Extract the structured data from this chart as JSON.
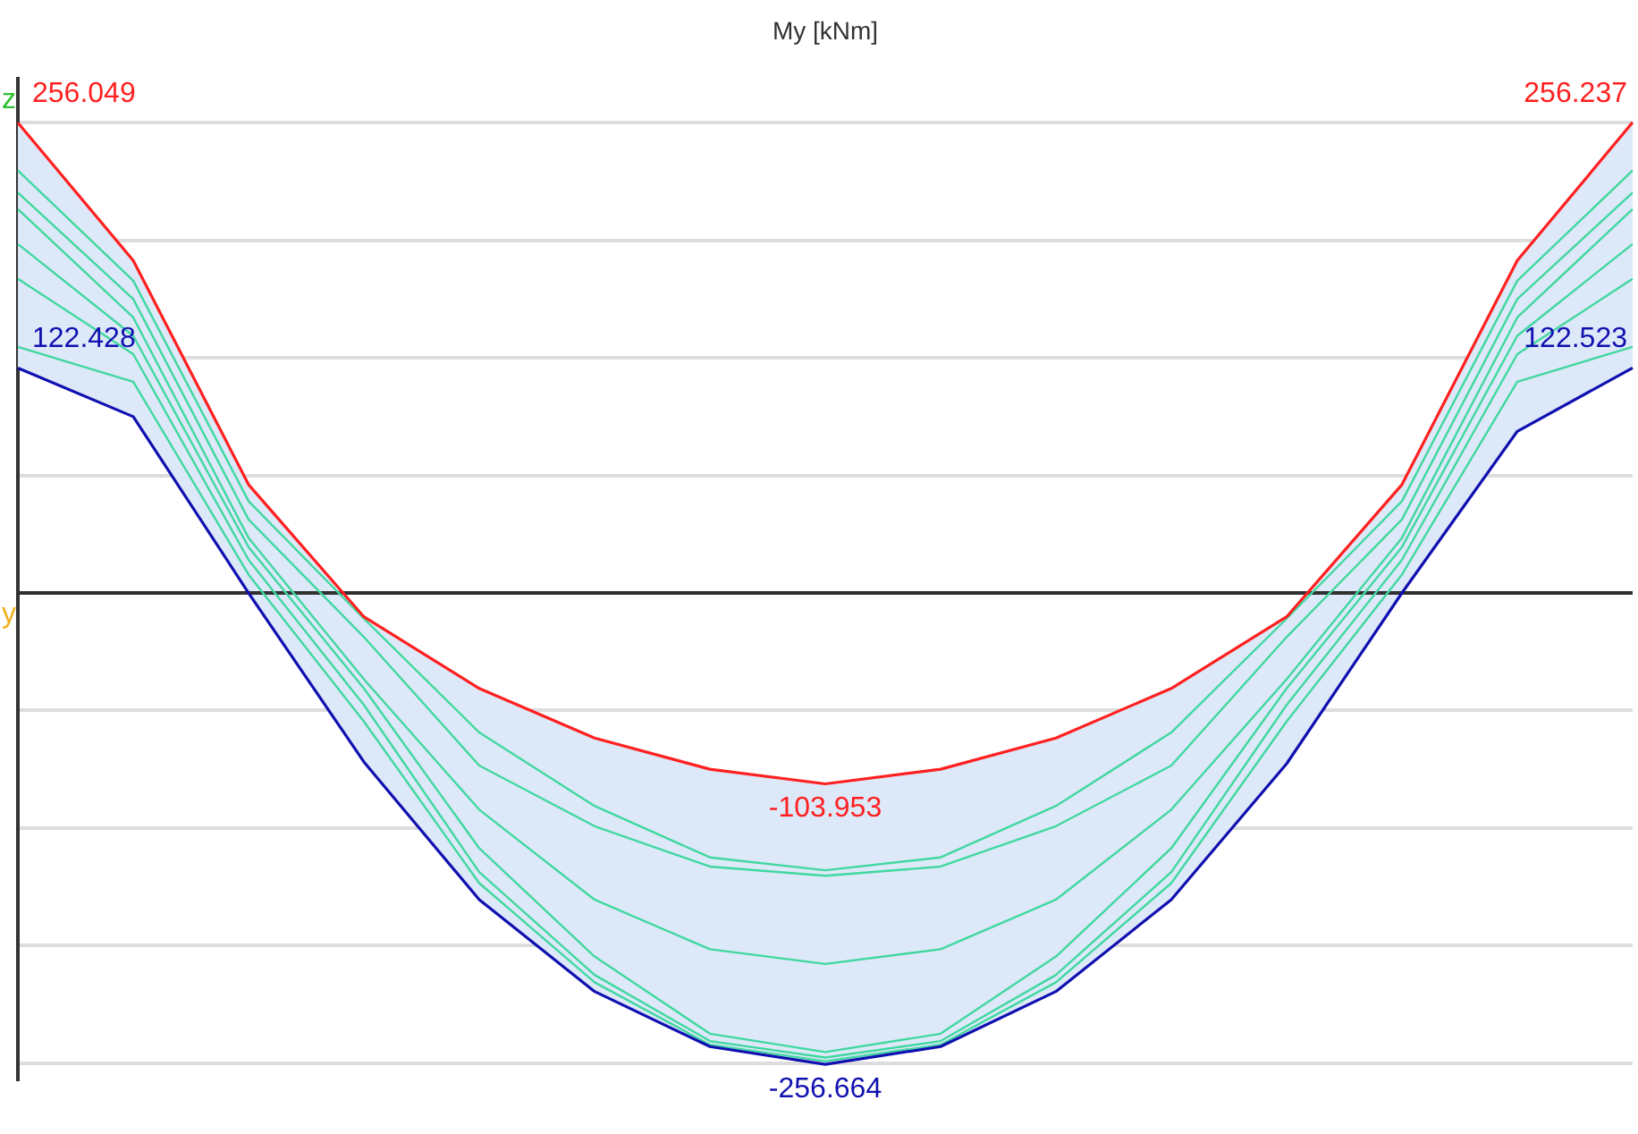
{
  "chart_data": {
    "type": "line",
    "title": "My [kNm]",
    "xlabel": "y",
    "ylabel": "z",
    "categories": [
      null,
      null,
      null,
      null,
      null,
      null,
      null,
      null,
      null,
      null,
      null,
      null,
      null,
      null,
      null
    ],
    "ylim": [
      -265,
      280
    ],
    "yticks": [
      {
        "value": -256,
        "label": null
      },
      {
        "value": -192,
        "label": null
      },
      {
        "value": -128,
        "label": null
      },
      {
        "value": -64,
        "label": null
      },
      {
        "value": 0,
        "label": null
      },
      {
        "value": 64,
        "label": null
      },
      {
        "value": 128,
        "label": null
      },
      {
        "value": 192,
        "label": null
      },
      {
        "value": 256,
        "label": null
      }
    ],
    "grid": "y",
    "marker": "none",
    "line_style": "solid",
    "series": [
      {
        "color": "#ff2020",
        "values": [
          256.049,
          181,
          59,
          -13,
          -52,
          -79,
          -96,
          -103.953,
          -96,
          -79,
          -52,
          -13,
          59,
          181,
          256.237
        ],
        "value_labels": [
          "256.049",
          null,
          null,
          null,
          null,
          null,
          null,
          "-103.953",
          null,
          null,
          null,
          null,
          null,
          null,
          "256.237"
        ],
        "upper": [
          256.049,
          181,
          59,
          -13,
          -52,
          -79,
          -96,
          -103.953,
          -96,
          -79,
          -52,
          -13,
          59,
          181,
          256.237
        ],
        "lower": [
          122.428,
          96,
          0,
          -92,
          -167,
          -217,
          -247,
          -256.664,
          -247,
          -217,
          -167,
          -93,
          0,
          88,
          122.523
        ]
      },
      {
        "color": "#1010b0",
        "values": [
          122.428,
          96,
          0,
          -92,
          -167,
          -217,
          -247,
          -256.664,
          -247,
          -217,
          -167,
          -93,
          0,
          88,
          122.523
        ],
        "value_labels": [
          "122.428",
          null,
          null,
          null,
          null,
          null,
          null,
          "-256.664",
          null,
          null,
          null,
          null,
          null,
          null,
          "122.523"
        ]
      },
      {
        "color": "#40d8a0",
        "values": [
          230,
          170,
          50,
          -14,
          -76,
          -116,
          -144,
          -151,
          -144,
          -116,
          -76,
          -14,
          50,
          170,
          230
        ]
      },
      {
        "color": "#40d8a0",
        "values": [
          218,
          160,
          40,
          -24,
          -94,
          -127,
          -149,
          -154,
          -149,
          -127,
          -94,
          -24,
          40,
          160,
          218
        ]
      },
      {
        "color": "#40d8a0",
        "values": [
          209,
          150,
          30,
          -47,
          -118,
          -167,
          -194,
          -202,
          -194,
          -167,
          -118,
          -47,
          30,
          150,
          209
        ]
      },
      {
        "color": "#40d8a0",
        "values": [
          190,
          140,
          25,
          -52,
          -139,
          -198,
          -240,
          -250,
          -240,
          -198,
          -139,
          -52,
          25,
          140,
          190
        ]
      },
      {
        "color": "#40d8a0",
        "values": [
          171,
          130,
          18,
          -61,
          -152,
          -208,
          -244,
          -253,
          -244,
          -208,
          -152,
          -61,
          18,
          130,
          171
        ]
      },
      {
        "color": "#40d8a0",
        "values": [
          134,
          115,
          10,
          -70,
          -158,
          -212,
          -246,
          -255,
          -246,
          -212,
          -158,
          -70,
          10,
          115,
          134
        ]
      }
    ]
  }
}
